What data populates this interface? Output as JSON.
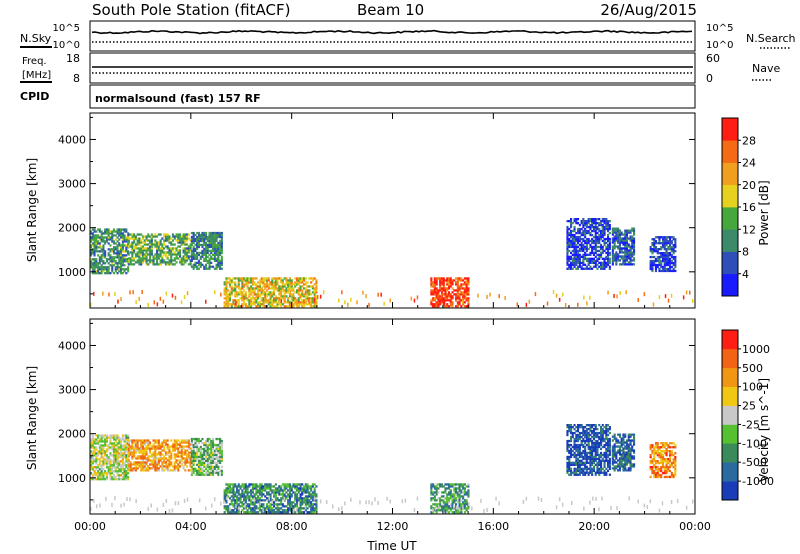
{
  "header": {
    "station": "South Pole Station (fitACF)",
    "beam": "Beam 10",
    "date": "26/Aug/2015"
  },
  "info_panels": {
    "nsky_label": "N.Sky",
    "nsearch_label": "N.Search",
    "noise_tick_top": "10^5",
    "noise_tick_bottom": "10^0",
    "freq_label_1": "Freq.",
    "freq_label_2": "[MHz]",
    "freq_tick_top": "18",
    "freq_tick_bottom": "8",
    "nave_label": "Nave",
    "nave_tick_top": "60",
    "nave_tick_bottom": "0",
    "cpid_label": "CPID",
    "cpid_value": "normalsound (fast) 157 RF"
  },
  "chart_data": [
    {
      "type": "heatmap",
      "name": "power",
      "xlabel": "Time UT",
      "ylabel": "Slant Range [km]",
      "xlim": [
        0,
        24
      ],
      "ylim": [
        180,
        4600
      ],
      "x_ticks": [
        0,
        4,
        8,
        12,
        16,
        20,
        24
      ],
      "x_tick_labels": [
        "00:00",
        "04:00",
        "08:00",
        "12:00",
        "16:00",
        "20:00",
        "00:00"
      ],
      "y_ticks": [
        1000,
        2000,
        3000,
        4000
      ],
      "y_tick_labels": [
        "1000",
        "2000",
        "3000",
        "4000"
      ],
      "colorbar": {
        "label": "Power [dB]",
        "tick_labels": [
          "4",
          "8",
          "12",
          "16",
          "20",
          "24",
          "28"
        ],
        "colors": [
          "#1a1aff",
          "#2e4fb8",
          "#3c8a6a",
          "#46a83c",
          "#e6d21e",
          "#f0a01e",
          "#f56a14",
          "#ff1e14"
        ]
      },
      "regions": [
        {
          "t": [
            0.0,
            1.5
          ],
          "range": [
            950,
            1950
          ],
          "level": 0.35
        },
        {
          "t": [
            1.5,
            4.0
          ],
          "range": [
            1150,
            1850
          ],
          "level": 0.4
        },
        {
          "t": [
            4.0,
            5.2
          ],
          "range": [
            1050,
            1900
          ],
          "level": 0.3
        },
        {
          "t": [
            5.3,
            9.0
          ],
          "range": [
            200,
            850
          ],
          "level": 0.6
        },
        {
          "t": [
            13.5,
            15.0
          ],
          "range": [
            200,
            850
          ],
          "level": 0.9
        },
        {
          "t": [
            18.9,
            20.6
          ],
          "range": [
            1050,
            2200
          ],
          "level": 0.15
        },
        {
          "t": [
            20.7,
            21.6
          ],
          "range": [
            1150,
            2000
          ],
          "level": 0.2
        },
        {
          "t": [
            22.2,
            23.2
          ],
          "range": [
            1000,
            1800
          ],
          "level": 0.15
        }
      ]
    },
    {
      "type": "heatmap",
      "name": "velocity",
      "xlabel": "Time UT",
      "ylabel": "Slant Range [km]",
      "xlim": [
        0,
        24
      ],
      "ylim": [
        180,
        4600
      ],
      "x_ticks": [
        0,
        4,
        8,
        12,
        16,
        20,
        24
      ],
      "x_tick_labels": [
        "00:00",
        "04:00",
        "08:00",
        "12:00",
        "16:00",
        "20:00",
        "00:00"
      ],
      "y_ticks": [
        1000,
        2000,
        3000,
        4000
      ],
      "y_tick_labels": [
        "1000",
        "2000",
        "3000",
        "4000"
      ],
      "colorbar": {
        "label": "Velocity [m s^-1]",
        "tick_labels": [
          "1000",
          "500",
          "100",
          "25",
          "-25",
          "-100",
          "-500",
          "-1000"
        ],
        "colors": [
          "#1a3cb8",
          "#2a6aa0",
          "#3a8a5a",
          "#55c030",
          "#c8c8c8",
          "#f0c814",
          "#f09614",
          "#f06414",
          "#ff1e14"
        ]
      },
      "regions": [
        {
          "t": [
            0.0,
            1.5
          ],
          "range": [
            950,
            1950
          ],
          "level": 0.5
        },
        {
          "t": [
            1.5,
            4.0
          ],
          "range": [
            1150,
            1850
          ],
          "level": 0.7
        },
        {
          "t": [
            4.0,
            5.2
          ],
          "range": [
            1050,
            1900
          ],
          "level": 0.4
        },
        {
          "t": [
            5.3,
            9.0
          ],
          "range": [
            200,
            850
          ],
          "level": 0.25
        },
        {
          "t": [
            13.5,
            15.0
          ],
          "range": [
            200,
            850
          ],
          "level": 0.3
        },
        {
          "t": [
            18.9,
            20.6
          ],
          "range": [
            1050,
            2200
          ],
          "level": 0.1
        },
        {
          "t": [
            20.7,
            21.6
          ],
          "range": [
            1150,
            2000
          ],
          "level": 0.15
        },
        {
          "t": [
            22.2,
            23.2
          ],
          "range": [
            1000,
            1800
          ],
          "level": 0.75
        }
      ]
    }
  ]
}
